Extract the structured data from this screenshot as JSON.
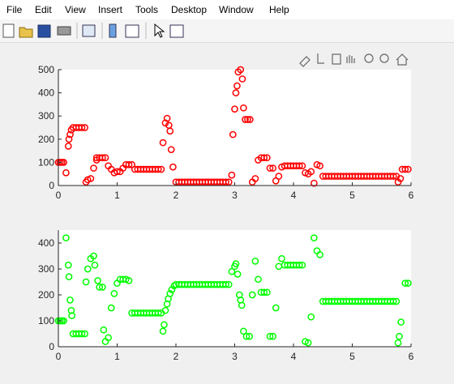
{
  "menu": [
    "File",
    "Edit",
    "View",
    "Insert",
    "Tools",
    "Desktop",
    "Window",
    "Help"
  ],
  "chart_data": [
    {
      "type": "scatter",
      "color": "#ff0000",
      "xlim": [
        0,
        6
      ],
      "xticks": [
        0,
        1,
        2,
        3,
        4,
        5,
        6
      ],
      "ylim": [
        0,
        500
      ],
      "yticks": [
        0,
        100,
        200,
        300,
        400,
        500
      ],
      "x": [
        0,
        0.03,
        0.06,
        0.09,
        0.13,
        0.17,
        0.18,
        0.2,
        0.22,
        0.25,
        0.3,
        0.35,
        0.4,
        0.45,
        0.47,
        0.5,
        0.55,
        0.6,
        0.65,
        0.65,
        0.7,
        0.75,
        0.8,
        0.85,
        0.9,
        0.95,
        1,
        1.05,
        1.1,
        1.15,
        1.2,
        1.25,
        1.3,
        1.35,
        1.4,
        1.45,
        1.5,
        1.55,
        1.6,
        1.65,
        1.7,
        1.75,
        1.78,
        1.82,
        1.85,
        1.88,
        1.9,
        1.92,
        1.95,
        2,
        2.05,
        2.1,
        2.15,
        2.2,
        2.25,
        2.3,
        2.35,
        2.4,
        2.45,
        2.5,
        2.55,
        2.6,
        2.65,
        2.7,
        2.75,
        2.8,
        2.85,
        2.9,
        2.95,
        2.97,
        3,
        3.02,
        3.04,
        3.06,
        3.1,
        3.13,
        3.15,
        3.18,
        3.22,
        3.26,
        3.3,
        3.35,
        3.4,
        3.45,
        3.5,
        3.55,
        3.6,
        3.65,
        3.7,
        3.75,
        3.8,
        3.85,
        3.9,
        3.95,
        4,
        4.05,
        4.1,
        4.15,
        4.2,
        4.25,
        4.3,
        4.35,
        4.4,
        4.45,
        4.5,
        4.55,
        4.6,
        4.65,
        4.7,
        4.75,
        4.8,
        4.85,
        4.9,
        4.95,
        5,
        5.05,
        5.1,
        5.15,
        5.2,
        5.25,
        5.3,
        5.35,
        5.4,
        5.45,
        5.5,
        5.55,
        5.6,
        5.65,
        5.7,
        5.75,
        5.78,
        5.82,
        5.85,
        5.9,
        5.95
      ],
      "values": [
        100,
        100,
        100,
        100,
        55,
        170,
        200,
        220,
        240,
        250,
        250,
        250,
        250,
        250,
        15,
        25,
        30,
        75,
        110,
        120,
        120,
        120,
        120,
        85,
        70,
        55,
        60,
        60,
        75,
        90,
        90,
        90,
        70,
        70,
        70,
        70,
        70,
        70,
        70,
        70,
        70,
        70,
        185,
        270,
        290,
        260,
        235,
        155,
        80,
        15,
        15,
        15,
        15,
        15,
        15,
        15,
        15,
        15,
        15,
        15,
        15,
        15,
        15,
        15,
        15,
        15,
        15,
        15,
        45,
        220,
        330,
        400,
        430,
        490,
        500,
        460,
        335,
        285,
        285,
        285,
        15,
        30,
        110,
        120,
        120,
        120,
        75,
        75,
        20,
        40,
        80,
        85,
        85,
        85,
        85,
        85,
        85,
        85,
        55,
        50,
        60,
        10,
        90,
        85,
        40,
        40,
        40,
        40,
        40,
        40,
        40,
        40,
        40,
        40,
        40,
        40,
        40,
        40,
        40,
        40,
        40,
        40,
        40,
        40,
        40,
        40,
        40,
        40,
        40,
        40,
        15,
        30,
        70,
        70,
        70
      ]
    },
    {
      "type": "scatter",
      "color": "#00ff00",
      "xlim": [
        0,
        6
      ],
      "xticks": [
        0,
        1,
        2,
        3,
        4,
        5,
        6
      ],
      "ylim": [
        0,
        450
      ],
      "yticks": [
        0,
        100,
        200,
        300,
        400
      ],
      "x": [
        0,
        0.03,
        0.06,
        0.09,
        0.13,
        0.17,
        0.18,
        0.2,
        0.22,
        0.23,
        0.25,
        0.3,
        0.35,
        0.4,
        0.45,
        0.47,
        0.5,
        0.55,
        0.6,
        0.62,
        0.67,
        0.7,
        0.75,
        0.77,
        0.8,
        0.85,
        0.9,
        0.95,
        1,
        1.05,
        1.1,
        1.15,
        1.2,
        1.25,
        1.3,
        1.35,
        1.4,
        1.45,
        1.5,
        1.55,
        1.6,
        1.65,
        1.7,
        1.75,
        1.78,
        1.8,
        1.82,
        1.85,
        1.87,
        1.9,
        1.93,
        1.97,
        2,
        2.05,
        2.1,
        2.15,
        2.2,
        2.25,
        2.3,
        2.35,
        2.4,
        2.45,
        2.5,
        2.55,
        2.6,
        2.65,
        2.7,
        2.75,
        2.8,
        2.85,
        2.9,
        2.95,
        3,
        3.02,
        3.05,
        3.08,
        3.1,
        3.12,
        3.15,
        3.2,
        3.25,
        3.3,
        3.35,
        3.4,
        3.45,
        3.5,
        3.55,
        3.6,
        3.65,
        3.7,
        3.75,
        3.8,
        3.85,
        3.9,
        3.95,
        4,
        4.05,
        4.1,
        4.15,
        4.2,
        4.25,
        4.3,
        4.35,
        4.4,
        4.45,
        4.5,
        4.55,
        4.6,
        4.65,
        4.7,
        4.75,
        4.8,
        4.85,
        4.9,
        4.95,
        5,
        5.05,
        5.1,
        5.15,
        5.2,
        5.25,
        5.3,
        5.35,
        5.4,
        5.45,
        5.5,
        5.55,
        5.6,
        5.65,
        5.7,
        5.75,
        5.78,
        5.8,
        5.83,
        5.9,
        5.95
      ],
      "values": [
        100,
        100,
        100,
        100,
        420,
        315,
        270,
        180,
        140,
        120,
        50,
        50,
        50,
        50,
        50,
        250,
        300,
        340,
        350,
        315,
        255,
        230,
        230,
        65,
        20,
        35,
        150,
        205,
        245,
        260,
        260,
        260,
        255,
        130,
        130,
        130,
        130,
        130,
        130,
        130,
        130,
        130,
        130,
        130,
        60,
        85,
        140,
        165,
        185,
        205,
        220,
        235,
        240,
        240,
        240,
        240,
        240,
        240,
        240,
        240,
        240,
        240,
        240,
        240,
        240,
        240,
        240,
        240,
        240,
        240,
        240,
        290,
        310,
        320,
        280,
        200,
        180,
        160,
        60,
        40,
        40,
        200,
        330,
        260,
        210,
        210,
        210,
        40,
        40,
        150,
        310,
        340,
        315,
        315,
        315,
        315,
        315,
        315,
        315,
        20,
        15,
        115,
        420,
        370,
        355,
        175,
        175,
        175,
        175,
        175,
        175,
        175,
        175,
        175,
        175,
        175,
        175,
        175,
        175,
        175,
        175,
        175,
        175,
        175,
        175,
        175,
        175,
        175,
        175,
        175,
        175,
        15,
        40,
        95,
        245,
        245
      ]
    }
  ]
}
